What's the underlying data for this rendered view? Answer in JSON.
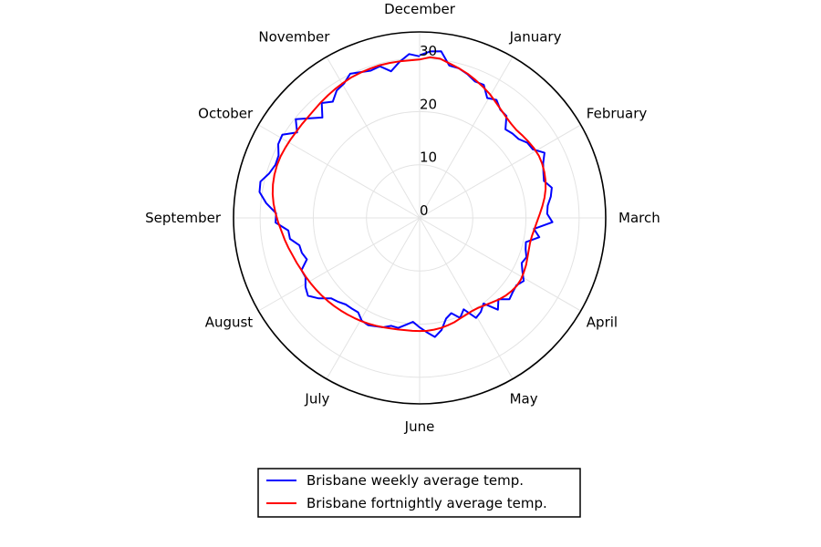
{
  "chart_data": {
    "type": "line",
    "projection": "polar",
    "angular_labels": [
      "December",
      "January",
      "February",
      "March",
      "April",
      "May",
      "June",
      "July",
      "August",
      "September",
      "October",
      "November"
    ],
    "radial_ticks": [
      0,
      10,
      20,
      30
    ],
    "rlim": [
      0,
      35
    ],
    "grid": true,
    "legend_position": "bottom",
    "series": [
      {
        "name": "Brisbane weekly average temp.",
        "color": "#0000ff",
        "values": [
          30.6,
          31.4,
          31.6,
          29.2,
          29.1,
          28.5,
          27.7,
          27.8,
          25.9,
          26.5,
          25.4,
          25.2,
          23.2,
          23.6,
          23.8,
          24.7,
          24.9,
          26.5,
          25.4,
          24.8,
          24.4,
          25.5,
          25.0,
          24.2,
          24.0,
          25.0,
          21.6,
          22.8,
          20.5,
          20.8,
          21.4,
          21.0,
          21.8,
          22.9,
          22.2,
          22.4,
          22.8,
          21.3,
          22.7,
          20.1,
          21.1,
          21.6,
          19.1,
          20.3,
          18.9,
          19.6,
          21.5,
          22.6,
          21.6,
          20.6,
          19.6,
          20.3,
          21.1,
          21.0,
          21.7,
          22.0,
          22.4,
          22.2,
          21.2,
          21.3,
          21.4,
          22.0,
          22.5,
          24.3,
          25.6,
          25.1,
          24.2,
          24.3,
          22.6,
          23.1,
          23.2,
          24.7,
          24.8,
          27.1,
          27.0,
          29.0,
          30.5,
          30.7,
          29.5,
          28.9,
          29.0,
          30.0,
          30.2,
          28.1,
          29.8,
          27.9,
          26.3,
          28.4,
          27.3,
          28.6,
          29.0,
          30.1,
          29.6,
          29.2,
          29.5,
          28.1,
          29.6,
          30.9,
          30.4
        ]
      },
      {
        "name": "Brisbane fortnightly average temp.",
        "color": "#ff0000",
        "values": [
          29.8,
          30.3,
          30.2,
          29.6,
          29.1,
          28.6,
          28.0,
          27.4,
          26.8,
          26.1,
          25.5,
          25.0,
          24.7,
          24.6,
          24.8,
          25.0,
          25.2,
          25.3,
          25.2,
          25.0,
          24.7,
          24.3,
          23.8,
          23.2,
          22.6,
          22.1,
          21.7,
          21.4,
          21.3,
          21.4,
          21.6,
          21.9,
          22.1,
          22.3,
          22.3,
          22.1,
          21.8,
          21.4,
          20.9,
          20.5,
          20.2,
          20.1,
          20.2,
          20.4,
          20.7,
          20.9,
          21.1,
          21.2,
          21.3,
          21.3,
          21.3,
          21.3,
          21.4,
          21.5,
          21.7,
          21.9,
          22.1,
          22.3,
          22.5,
          22.7,
          22.9,
          23.1,
          23.3,
          23.5,
          23.7,
          23.9,
          24.1,
          24.3,
          24.6,
          24.9,
          25.3,
          25.7,
          26.1,
          26.6,
          27.1,
          27.6,
          28.0,
          28.3,
          28.5,
          28.6,
          28.6,
          28.5,
          28.4,
          28.3,
          28.3,
          28.3,
          28.4,
          28.6,
          28.8,
          29.0,
          29.2,
          29.4,
          29.5,
          29.6,
          29.7,
          29.7,
          29.7,
          29.7,
          29.8
        ]
      }
    ]
  }
}
